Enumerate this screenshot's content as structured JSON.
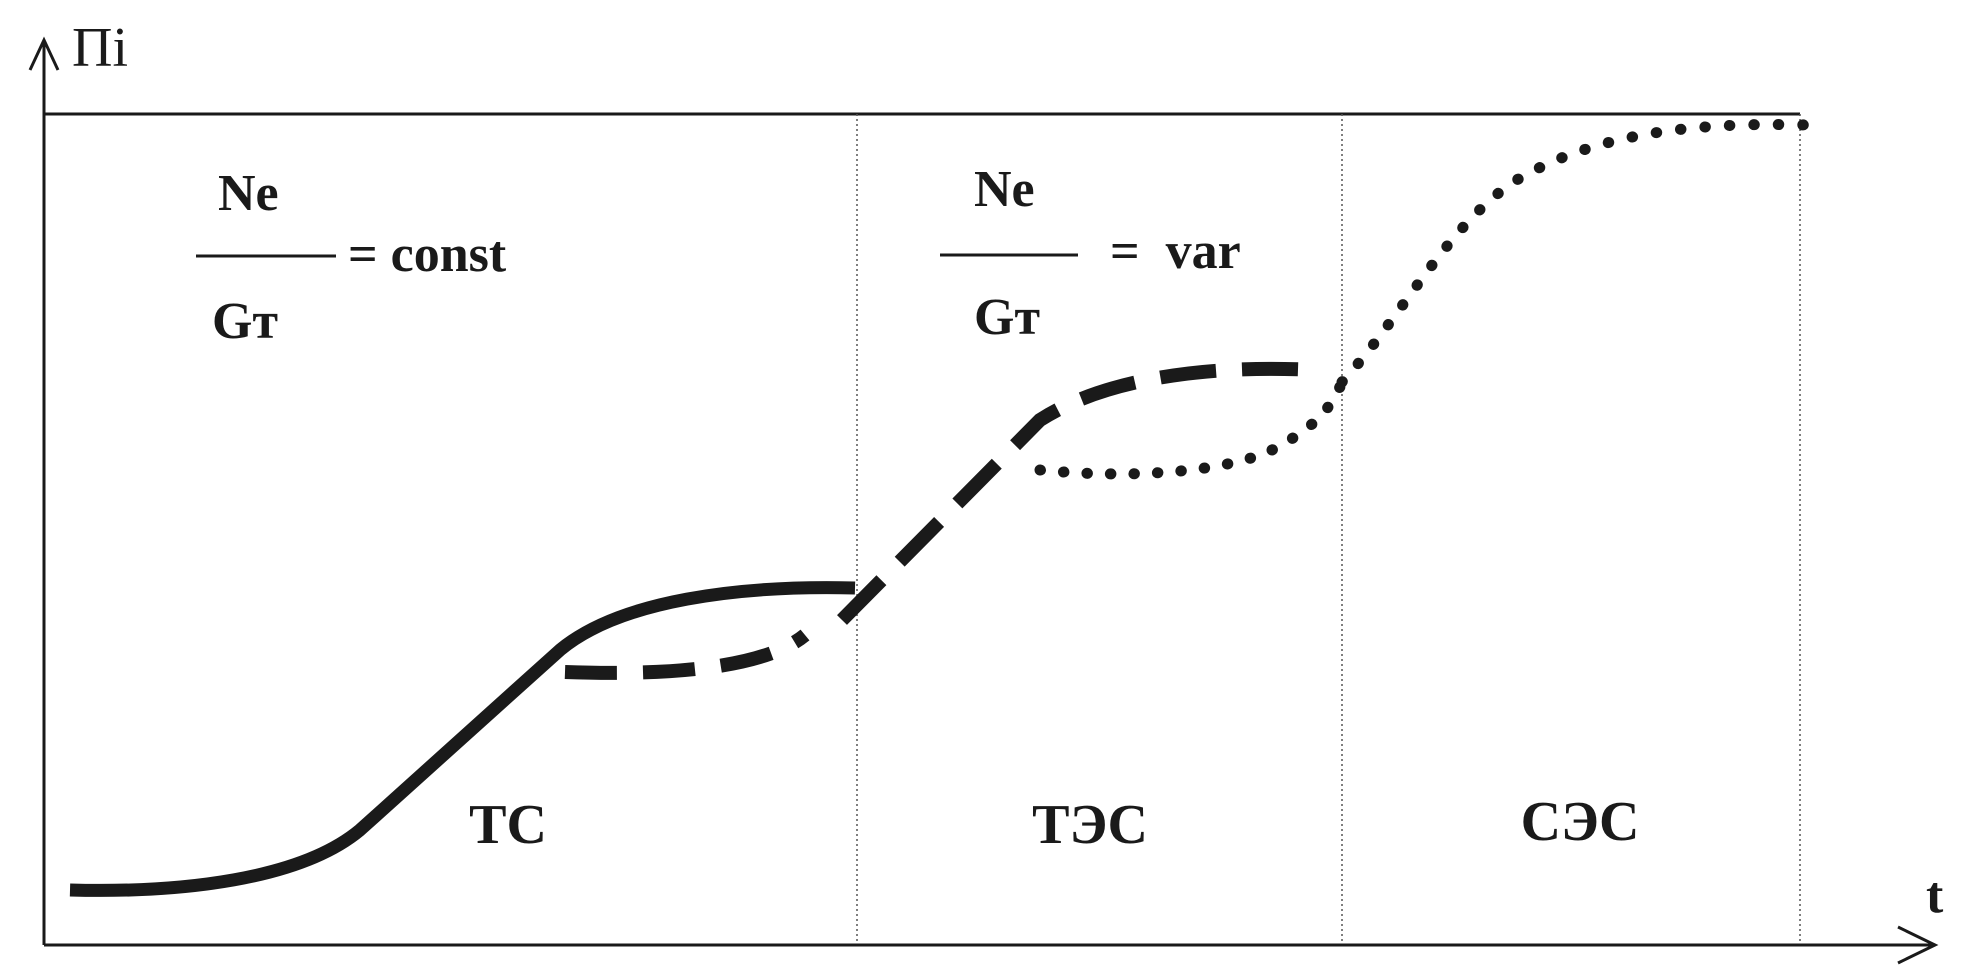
{
  "axes": {
    "y_label": "Пi",
    "x_label": "t"
  },
  "formula_constant": {
    "numerator": "Ne",
    "denominator": "Gт",
    "relation": "= const"
  },
  "formula_variable": {
    "numerator": "Ne",
    "denominator": "Gт",
    "relation": "=  var"
  },
  "regions": [
    {
      "label": "ТС"
    },
    {
      "label": "ТЭС"
    },
    {
      "label": "СЭС"
    }
  ],
  "colors": {
    "ink": "#1a1a1a",
    "background": "#ffffff"
  }
}
